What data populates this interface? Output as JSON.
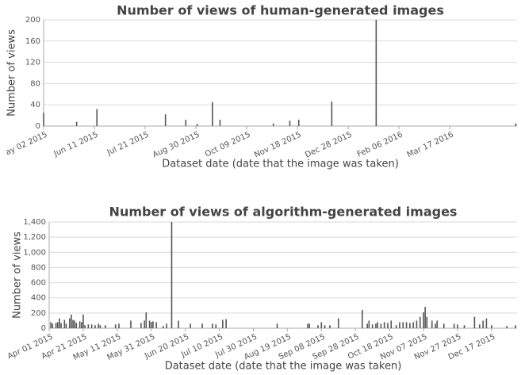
{
  "chart_data": [
    {
      "type": "bar",
      "title": "Number of views of human-generated images",
      "x_label": "Dataset date (date that the image was taken)",
      "y_label": "Number of views",
      "color": "#555555",
      "grid": true,
      "xlim": [
        "2015-05-02",
        "2016-05-09"
      ],
      "ylim": [
        0,
        200
      ],
      "yticks": [
        0,
        40,
        80,
        120,
        160,
        200
      ],
      "xticks": [
        {
          "value": "2015-05-02",
          "label": "ay 02 2015"
        },
        {
          "value": "2015-06-11",
          "label": "Jun 11 2015"
        },
        {
          "value": "2015-07-21",
          "label": "Jul 21 2015"
        },
        {
          "value": "2015-08-30",
          "label": "Aug 30 2015"
        },
        {
          "value": "2015-10-09",
          "label": "Oct 09 2015"
        },
        {
          "value": "2015-11-18",
          "label": "Nov 18 2015"
        },
        {
          "value": "2015-12-28",
          "label": "Dec 28 2015"
        },
        {
          "value": "2016-02-06",
          "label": "Feb 06 2016"
        },
        {
          "value": "2016-03-17",
          "label": "Mar 17 2016"
        }
      ],
      "x": [
        "2015-05-02",
        "2015-05-28",
        "2015-06-13",
        "2015-08-06",
        "2015-08-22",
        "2015-08-31",
        "2015-09-12",
        "2015-09-18",
        "2015-10-30",
        "2015-11-12",
        "2015-11-19",
        "2015-12-15",
        "2016-01-19",
        "2016-05-08"
      ],
      "values": [
        25,
        8,
        32,
        22,
        12,
        4,
        45,
        12,
        5,
        10,
        12,
        46,
        200,
        5
      ]
    },
    {
      "type": "bar",
      "title": "Number of views of algorithm-generated images",
      "x_label": "Dataset date (date that the image was taken)",
      "y_label": "Number of views",
      "color": "#555555",
      "grid": true,
      "xlim": [
        "2015-04-01",
        "2016-01-01"
      ],
      "ylim": [
        0,
        1400
      ],
      "yticks": [
        0,
        200,
        400,
        600,
        800,
        {
          "value": 1000,
          "label": "1,000"
        },
        {
          "value": 1200,
          "label": "1,200"
        },
        {
          "value": 1400,
          "label": "1,400"
        }
      ],
      "xticks": [
        {
          "value": "2015-04-01",
          "label": "Apr 01 2015"
        },
        {
          "value": "2015-04-21",
          "label": "Apr 21 2015"
        },
        {
          "value": "2015-05-11",
          "label": "May 11 2015"
        },
        {
          "value": "2015-05-31",
          "label": "May 31 2015"
        },
        {
          "value": "2015-06-20",
          "label": "Jun 20 2015"
        },
        {
          "value": "2015-07-10",
          "label": "Jul 10 2015"
        },
        {
          "value": "2015-07-30",
          "label": "Jul 30 2015"
        },
        {
          "value": "2015-08-19",
          "label": "Aug 19 2015"
        },
        {
          "value": "2015-09-08",
          "label": "Sep 08 2015"
        },
        {
          "value": "2015-09-28",
          "label": "Sep 28 2015"
        },
        {
          "value": "2015-10-18",
          "label": "Oct 18 2015"
        },
        {
          "value": "2015-11-07",
          "label": "Nov 07 2015"
        },
        {
          "value": "2015-11-27",
          "label": "Nov 27 2015"
        },
        {
          "value": "2015-12-17",
          "label": "Dec 17 2015"
        }
      ],
      "x": [
        "2015-04-02",
        "2015-04-03",
        "2015-04-05",
        "2015-04-06",
        "2015-04-07",
        "2015-04-08",
        "2015-04-10",
        "2015-04-11",
        "2015-04-13",
        "2015-04-14",
        "2015-04-15",
        "2015-04-16",
        "2015-04-17",
        "2015-04-19",
        "2015-04-20",
        "2015-04-21",
        "2015-04-22",
        "2015-04-24",
        "2015-04-26",
        "2015-04-28",
        "2015-04-30",
        "2015-05-01",
        "2015-05-04",
        "2015-05-10",
        "2015-05-12",
        "2015-05-19",
        "2015-05-25",
        "2015-05-27",
        "2015-05-28",
        "2015-05-30",
        "2015-05-31",
        "2015-06-01",
        "2015-06-03",
        "2015-06-07",
        "2015-06-09",
        "2015-06-12",
        "2015-06-16",
        "2015-06-23",
        "2015-06-30",
        "2015-07-06",
        "2015-07-08",
        "2015-07-12",
        "2015-07-14",
        "2015-08-13",
        "2015-08-31",
        "2015-09-01",
        "2015-09-06",
        "2015-09-08",
        "2015-09-10",
        "2015-09-13",
        "2015-09-18",
        "2015-10-02",
        "2015-10-05",
        "2015-10-06",
        "2015-10-08",
        "2015-10-10",
        "2015-10-11",
        "2015-10-13",
        "2015-10-15",
        "2015-10-17",
        "2015-10-19",
        "2015-10-22",
        "2015-10-24",
        "2015-10-26",
        "2015-10-28",
        "2015-10-30",
        "2015-11-01",
        "2015-11-03",
        "2015-11-05",
        "2015-11-07",
        "2015-11-08",
        "2015-11-09",
        "2015-11-12",
        "2015-11-14",
        "2015-11-15",
        "2015-11-19",
        "2015-11-25",
        "2015-11-27",
        "2015-12-01",
        "2015-12-07",
        "2015-12-10",
        "2015-12-12",
        "2015-12-14",
        "2015-12-17",
        "2015-12-26",
        "2015-12-31"
      ],
      "values": [
        80,
        60,
        70,
        80,
        130,
        70,
        110,
        60,
        130,
        180,
        110,
        100,
        70,
        90,
        80,
        180,
        40,
        50,
        50,
        40,
        60,
        40,
        40,
        50,
        60,
        100,
        70,
        100,
        210,
        100,
        80,
        90,
        80,
        30,
        60,
        1400,
        100,
        60,
        60,
        60,
        50,
        110,
        120,
        60,
        60,
        60,
        40,
        80,
        40,
        40,
        130,
        240,
        60,
        100,
        50,
        60,
        80,
        60,
        80,
        70,
        100,
        40,
        80,
        80,
        80,
        70,
        80,
        100,
        150,
        210,
        280,
        150,
        100,
        60,
        100,
        60,
        60,
        50,
        40,
        150,
        50,
        100,
        130,
        40,
        30,
        40
      ]
    }
  ]
}
